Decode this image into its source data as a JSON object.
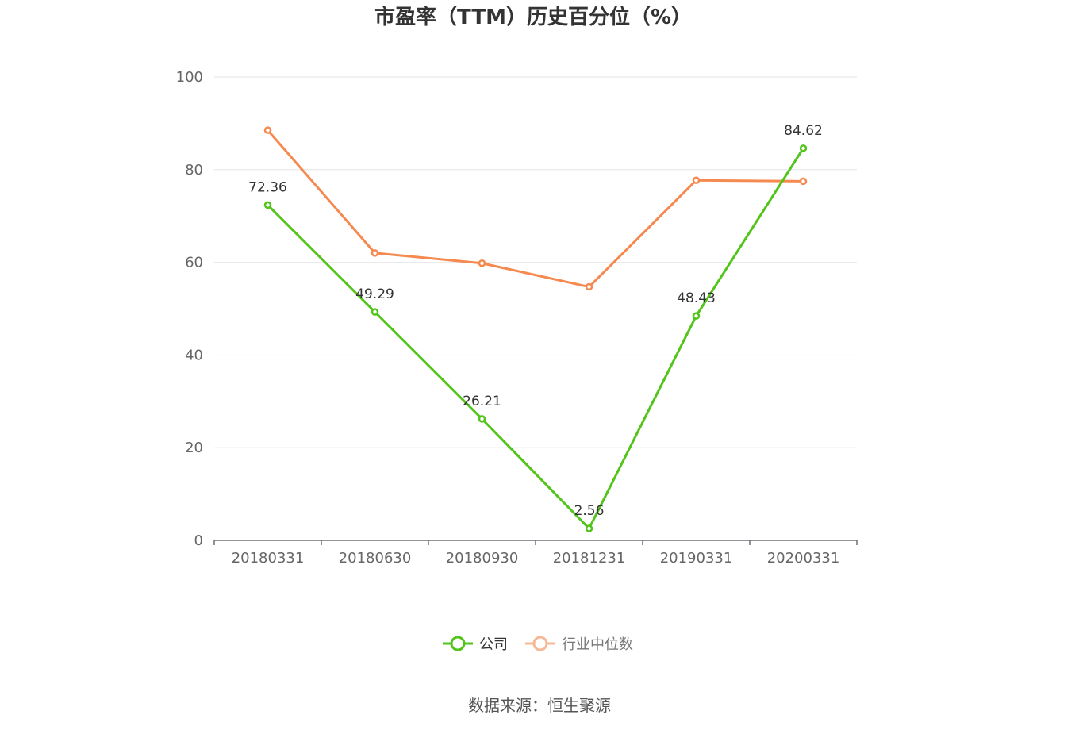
{
  "chart_data": {
    "type": "line",
    "title": "市盈率（TTM）历史百分位（%）",
    "categories": [
      "20180331",
      "20180630",
      "20180930",
      "20181231",
      "20190331",
      "20200331"
    ],
    "series": [
      {
        "name": "公司",
        "values": [
          72.36,
          49.29,
          26.21,
          2.56,
          48.43,
          84.62
        ],
        "data_labels": [
          "72.36",
          "49.29",
          "26.21",
          "2.56",
          "48.43",
          "84.62"
        ],
        "color": "#52c41a"
      },
      {
        "name": "行业中位数",
        "values": [
          88.5,
          62.0,
          59.8,
          54.7,
          77.7,
          77.5
        ],
        "color": "#f5894f"
      }
    ],
    "ylim": [
      0,
      100
    ],
    "yticks": [
      "0",
      "20",
      "40",
      "60",
      "80",
      "100"
    ],
    "grid": true,
    "legend_position": "bottom",
    "source": "数据来源：恒生聚源"
  }
}
